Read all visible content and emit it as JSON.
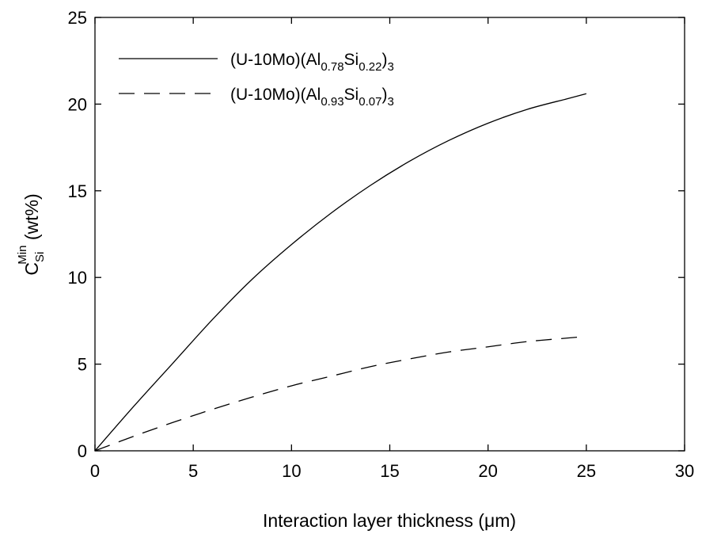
{
  "chart_data": {
    "type": "line",
    "xlabel": "Interaction layer thickness (μm)",
    "ylabel": {
      "main": "C",
      "subscript": "Si",
      "superscript": "Min",
      "suffix": " (wt%)"
    },
    "xlim": [
      0,
      30
    ],
    "ylim": [
      0,
      25
    ],
    "x_ticks": [
      0,
      5,
      10,
      15,
      20,
      25,
      30
    ],
    "y_ticks": [
      0,
      5,
      10,
      15,
      20,
      25
    ],
    "grid": false,
    "legend_position": "top-left",
    "series": [
      {
        "legend": {
          "prefix": "(U-10Mo)(Al",
          "sub1": "0.78",
          "mid": "Si",
          "sub2": "0.22",
          "close": ")",
          "sub3": "3"
        },
        "style": "solid",
        "color": "#000000",
        "x": [
          0,
          2,
          4,
          6,
          8,
          10,
          12,
          14,
          16,
          18,
          20,
          22,
          24,
          25
        ],
        "y": [
          0,
          2.6,
          5.1,
          7.6,
          9.9,
          11.9,
          13.7,
          15.3,
          16.7,
          17.9,
          18.9,
          19.7,
          20.3,
          20.6
        ]
      },
      {
        "legend": {
          "prefix": "(U-10Mo)(Al",
          "sub1": "0.93",
          "mid": "Si",
          "sub2": "0.07",
          "close": ")",
          "sub3": "3"
        },
        "style": "dashed",
        "color": "#000000",
        "x": [
          0,
          2,
          4,
          6,
          8,
          10,
          12,
          14,
          16,
          18,
          20,
          22,
          24,
          25
        ],
        "y": [
          0,
          0.85,
          1.65,
          2.4,
          3.1,
          3.75,
          4.3,
          4.85,
          5.3,
          5.7,
          6.0,
          6.3,
          6.5,
          6.6
        ]
      }
    ]
  }
}
